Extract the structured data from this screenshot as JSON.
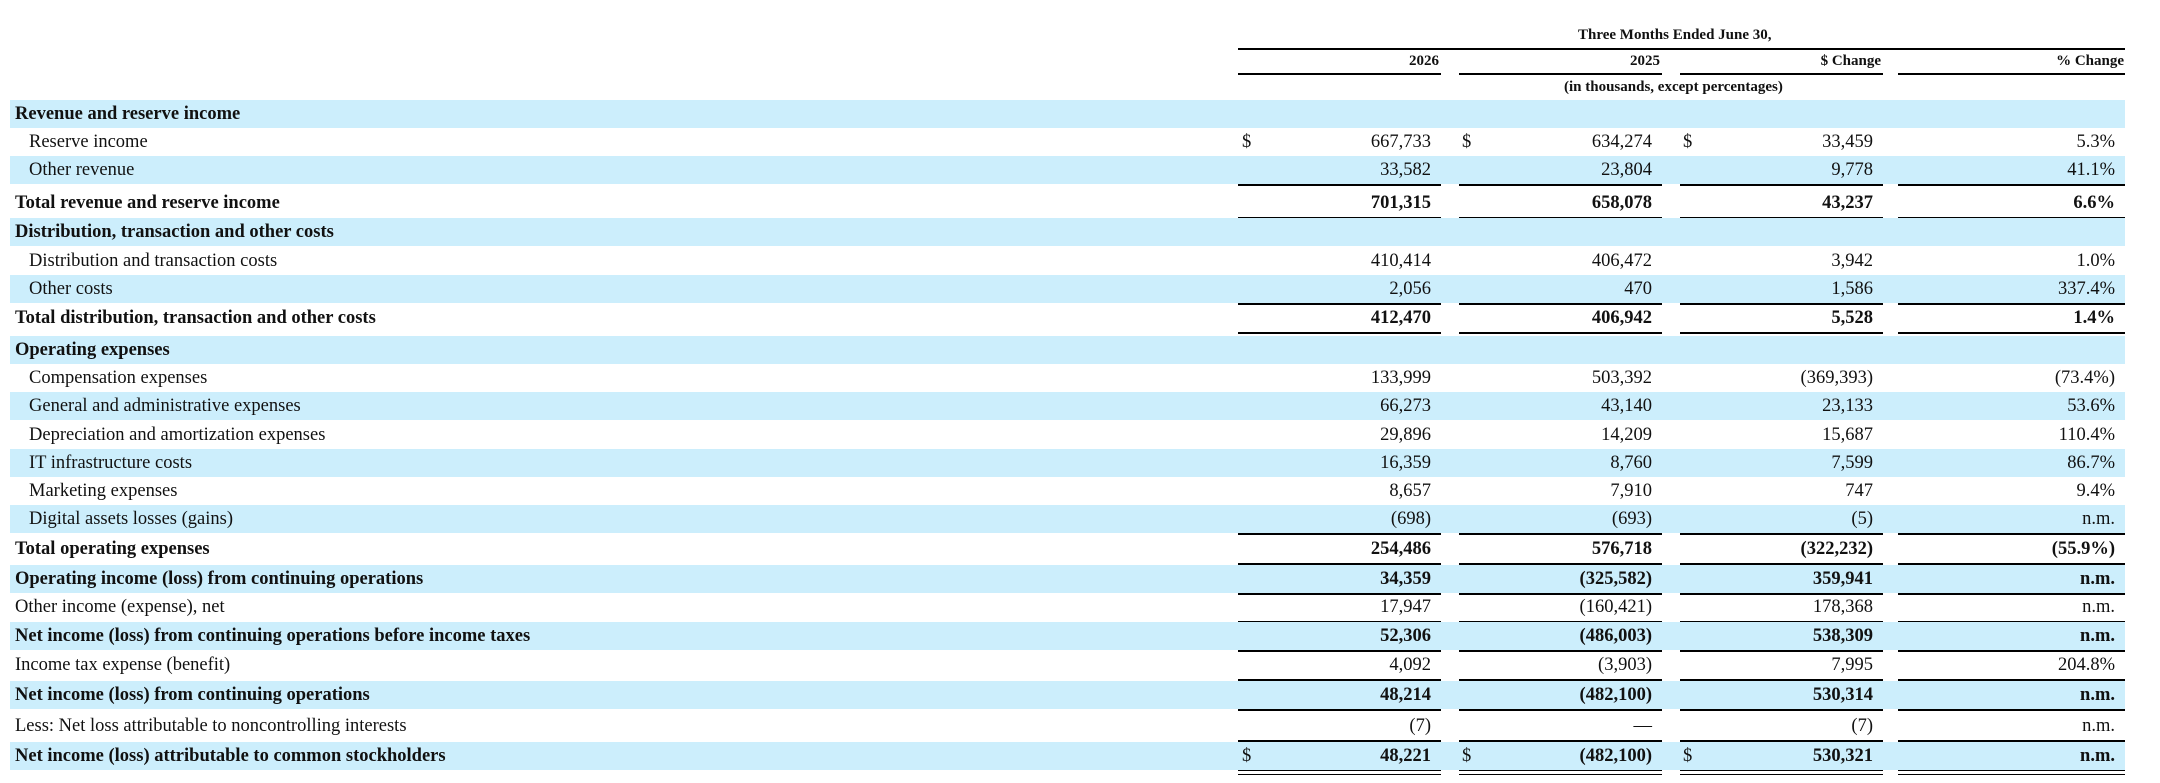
{
  "header": {
    "period": "Three Months Ended June 30,",
    "columns": [
      "2026",
      "2025",
      "$ Change",
      "% Change"
    ],
    "units": "(in thousands, except percentages)"
  },
  "rows": [
    {
      "label": "Revenue and reserve income",
      "type": "section"
    },
    {
      "label": "Reserve income",
      "type": "item",
      "indent": true,
      "dollar": true,
      "values": [
        "667,733",
        "634,274",
        "33,459",
        "5.3%"
      ]
    },
    {
      "label": "Other revenue",
      "type": "item",
      "indent": true,
      "values": [
        "33,582",
        "23,804",
        "9,778",
        "41.1%"
      ]
    },
    {
      "label": "Total revenue and reserve income",
      "type": "total",
      "values": [
        "701,315",
        "658,078",
        "43,237",
        "6.6%"
      ]
    },
    {
      "label": "Distribution, transaction and other costs",
      "type": "section"
    },
    {
      "label": "Distribution and transaction costs",
      "type": "item",
      "indent": true,
      "values": [
        "410,414",
        "406,472",
        "3,942",
        "1.0%"
      ]
    },
    {
      "label": "Other costs",
      "type": "item",
      "indent": true,
      "values": [
        "2,056",
        "470",
        "1,586",
        "337.4%"
      ]
    },
    {
      "label": "Total distribution, transaction and other costs",
      "type": "total",
      "values": [
        "412,470",
        "406,942",
        "5,528",
        "1.4%"
      ]
    },
    {
      "label": "Operating expenses",
      "type": "section"
    },
    {
      "label": "Compensation expenses",
      "type": "item",
      "indent": true,
      "values": [
        "133,999",
        "503,392",
        "(369,393)",
        "(73.4%)"
      ]
    },
    {
      "label": "General and administrative expenses",
      "type": "item",
      "indent": true,
      "values": [
        "66,273",
        "43,140",
        "23,133",
        "53.6%"
      ]
    },
    {
      "label": "Depreciation and amortization expenses",
      "type": "item",
      "indent": true,
      "values": [
        "29,896",
        "14,209",
        "15,687",
        "110.4%"
      ]
    },
    {
      "label": "IT infrastructure costs",
      "type": "item",
      "indent": true,
      "values": [
        "16,359",
        "8,760",
        "7,599",
        "86.7%"
      ]
    },
    {
      "label": "Marketing expenses",
      "type": "item",
      "indent": true,
      "values": [
        "8,657",
        "7,910",
        "747",
        "9.4%"
      ]
    },
    {
      "label": "Digital assets losses (gains)",
      "type": "item",
      "indent": true,
      "values": [
        "(698)",
        "(693)",
        "(5)",
        "n.m."
      ]
    },
    {
      "label": "Total operating expenses",
      "type": "total",
      "values": [
        "254,486",
        "576,718",
        "(322,232)",
        "(55.9%)"
      ]
    },
    {
      "label": "Operating income (loss) from continuing operations",
      "type": "subtotal",
      "values": [
        "34,359",
        "(325,582)",
        "359,941",
        "n.m."
      ]
    },
    {
      "label": "Other income (expense), net",
      "type": "item",
      "values": [
        "17,947",
        "(160,421)",
        "178,368",
        "n.m."
      ]
    },
    {
      "label": "Net income (loss) from continuing operations before income taxes",
      "type": "total",
      "values": [
        "52,306",
        "(486,003)",
        "538,309",
        "n.m."
      ]
    },
    {
      "label": "Income tax expense (benefit)",
      "type": "item",
      "values": [
        "4,092",
        "(3,903)",
        "7,995",
        "204.8%"
      ]
    },
    {
      "label": "Net income (loss) from continuing operations",
      "type": "total",
      "values": [
        "48,214",
        "(482,100)",
        "530,314",
        "n.m."
      ]
    },
    {
      "label": "Less: Net loss attributable to noncontrolling interests",
      "type": "item",
      "values": [
        "(7)",
        "—",
        "(7)",
        "n.m."
      ]
    },
    {
      "label": "Net income (loss) attributable to common stockholders",
      "type": "grand",
      "dollar": true,
      "values": [
        "48,221",
        "(482,100)",
        "530,321",
        "n.m."
      ]
    }
  ],
  "currency_symbol": "$"
}
